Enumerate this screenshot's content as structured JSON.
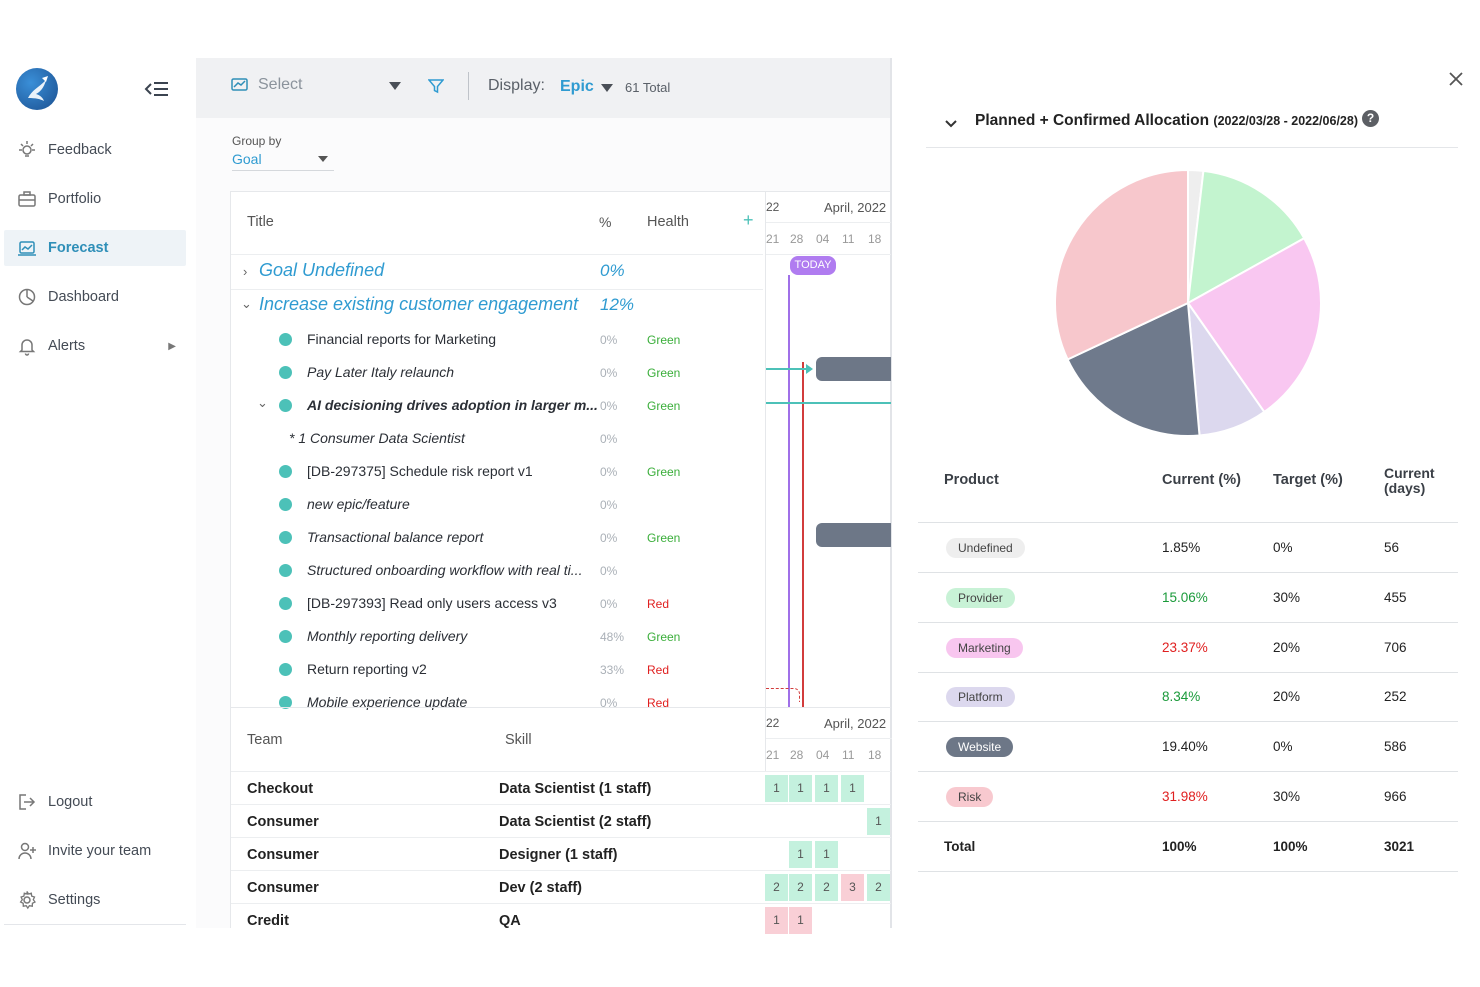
{
  "sidebar": {
    "items": [
      {
        "label": "Feedback",
        "icon": "lightbulb-icon"
      },
      {
        "label": "Portfolio",
        "icon": "briefcase-icon"
      },
      {
        "label": "Forecast",
        "icon": "forecast-icon",
        "active": true
      },
      {
        "label": "Dashboard",
        "icon": "pie-chart-icon"
      },
      {
        "label": "Alerts",
        "icon": "bell-icon"
      }
    ],
    "bottom": [
      {
        "label": "Logout",
        "icon": "logout-icon"
      },
      {
        "label": "Invite your team",
        "icon": "add-user-icon"
      },
      {
        "label": "Settings",
        "icon": "gear-icon"
      }
    ]
  },
  "toolbar": {
    "select_placeholder": "Select",
    "display_label": "Display:",
    "display_value": "Epic",
    "total": "61 Total"
  },
  "group_by": {
    "label": "Group by",
    "value": "Goal"
  },
  "grid": {
    "headers": {
      "title": "Title",
      "pct": "%",
      "health": "Health",
      "add": "+"
    },
    "goals": [
      {
        "title": "Goal Undefined",
        "pct": "0%"
      },
      {
        "title": "Increase existing customer engagement",
        "pct": "12%"
      }
    ],
    "rows": [
      {
        "title": "Financial reports for Marketing",
        "pct": "0%",
        "health": "Green"
      },
      {
        "title": "Pay Later Italy relaunch",
        "pct": "0%",
        "health": "Green"
      },
      {
        "title": "AI decisioning drives adoption in larger m...",
        "pct": "0%",
        "health": "Green"
      },
      {
        "title": "* 1 Consumer Data Scientist",
        "pct": "0%",
        "health": ""
      },
      {
        "title": "[DB-297375] Schedule risk report v1",
        "pct": "0%",
        "health": "Green"
      },
      {
        "title": "new epic/feature",
        "pct": "0%",
        "health": ""
      },
      {
        "title": "Transactional balance report",
        "pct": "0%",
        "health": "Green"
      },
      {
        "title": "Structured onboarding workflow with real ti...",
        "pct": "0%",
        "health": ""
      },
      {
        "title": "[DB-297393] Read only users access v3",
        "pct": "0%",
        "health": "Red"
      },
      {
        "title": "Monthly reporting delivery",
        "pct": "48%",
        "health": "Green"
      },
      {
        "title": "Return reporting v2",
        "pct": "33%",
        "health": "Red"
      },
      {
        "title": "Mobile experience update",
        "pct": "0%",
        "health": "Red"
      }
    ],
    "timeline": {
      "month": "April, 2022",
      "prev": "22",
      "days": [
        "21",
        "28",
        "04",
        "11",
        "18"
      ],
      "today": "TODAY"
    }
  },
  "teams": {
    "headers": {
      "team": "Team",
      "skill": "Skill"
    },
    "rows": [
      {
        "team": "Checkout",
        "skill": "Data Scientist (1 staff)",
        "cells": [
          "1",
          "1",
          "1",
          "1",
          ""
        ]
      },
      {
        "team": "Consumer",
        "skill": "Data Scientist (2 staff)",
        "cells": [
          "",
          "",
          "",
          "",
          "1"
        ]
      },
      {
        "team": "Consumer",
        "skill": "Designer (1 staff)",
        "cells": [
          "",
          "1",
          "1",
          "",
          ""
        ]
      },
      {
        "team": "Consumer",
        "skill": "Dev (2 staff)",
        "cells": [
          "2",
          "2",
          "2",
          "3",
          "2"
        ]
      },
      {
        "team": "Credit",
        "skill": "QA",
        "cells": [
          "1",
          "1",
          "",
          "",
          ""
        ]
      }
    ]
  },
  "allocation": {
    "title": "Planned + Confirmed Allocation",
    "range": "(2022/03/28 - 2022/06/28)",
    "help": "?",
    "headers": {
      "product": "Product",
      "current": "Current (%)",
      "target": "Target (%)",
      "days_line1": "Current",
      "days_line2": "(days)"
    },
    "rows": [
      {
        "product": "Undefined",
        "current": "1.85%",
        "target": "0%",
        "days": "56",
        "pill": "#eeeeee",
        "status": "#222222"
      },
      {
        "product": "Provider",
        "current": "15.06%",
        "target": "30%",
        "days": "455",
        "pill": "#c8f2d6",
        "status": "#1a9a3a"
      },
      {
        "product": "Marketing",
        "current": "23.37%",
        "target": "20%",
        "days": "706",
        "pill": "#f8c6ef",
        "status": "#e02020"
      },
      {
        "product": "Platform",
        "current": "8.34%",
        "target": "20%",
        "days": "252",
        "pill": "#dcd8ee",
        "status": "#1a9a3a"
      },
      {
        "product": "Website",
        "current": "19.40%",
        "target": "0%",
        "days": "586",
        "pill": "#6d7787",
        "status": "#222222"
      },
      {
        "product": "Risk",
        "current": "31.98%",
        "target": "30%",
        "days": "966",
        "pill": "#f8c9cf",
        "status": "#e02020"
      }
    ],
    "total": {
      "label": "Total",
      "current": "100%",
      "target": "100%",
      "days": "3021"
    }
  },
  "chart_data": {
    "type": "pie",
    "categories": [
      "Undefined",
      "Provider",
      "Marketing",
      "Platform",
      "Website",
      "Risk"
    ],
    "values": [
      1.85,
      15.06,
      23.37,
      8.34,
      19.4,
      31.98
    ],
    "colors": [
      "#eeeeee",
      "#c3f4cf",
      "#f9c7f1",
      "#dcd8ee",
      "#6f7a8c",
      "#f7c7cc"
    ]
  },
  "colors": {
    "accent": "#2f9bd1",
    "teal": "#4cc1b8",
    "green": "#3aae3a",
    "red": "#e02020"
  }
}
